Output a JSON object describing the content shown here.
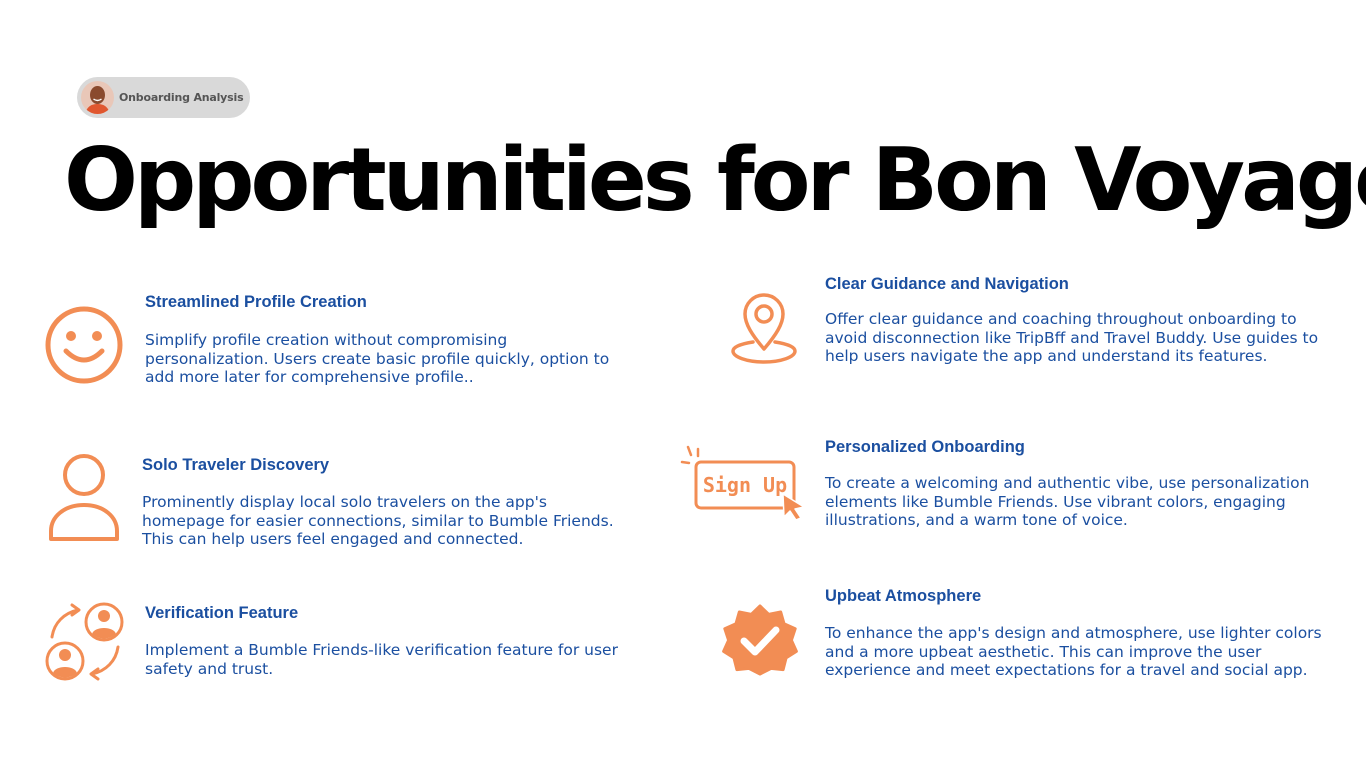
{
  "badge": {
    "label": "Onboarding Analysis"
  },
  "title": "Opportunities for Bon Voyage",
  "colors": {
    "accent": "#f28d54",
    "text": "#1b4fa0",
    "badge_bg": "#d9d9d9"
  },
  "items": [
    {
      "icon": "smiley-face-icon",
      "heading": "Streamlined Profile Creation",
      "text": "Simplify profile creation without compromising personalization. Users create basic profile quickly, option to add more later for comprehensive profile.."
    },
    {
      "icon": "user-profile-icon",
      "heading": "Solo Traveler Discovery",
      "text": "Prominently display local solo travelers on the app's homepage for easier connections, similar to Bumble Friends. This can help users feel engaged and connected."
    },
    {
      "icon": "user-exchange-icon",
      "heading": "Verification Feature",
      "text": "Implement a Bumble Friends-like verification feature for user safety and trust."
    },
    {
      "icon": "location-pin-icon",
      "heading": "Clear Guidance and Navigation",
      "text": "Offer clear guidance and coaching throughout onboarding to avoid disconnection like TripBff and Travel Buddy. Use guides to help users navigate the app and understand its features."
    },
    {
      "icon": "sign-up-button-icon",
      "icon_label": "Sign Up",
      "heading": "Personalized Onboarding",
      "text": "To create a welcoming and authentic vibe, use personalization elements like Bumble Friends. Use vibrant colors, engaging illustrations, and a warm tone of voice."
    },
    {
      "icon": "verified-badge-icon",
      "heading": "Upbeat Atmosphere",
      "text": "To enhance the app's design and atmosphere, use lighter colors and a more upbeat aesthetic. This can improve the user experience and meet expectations for a travel and social app."
    }
  ]
}
